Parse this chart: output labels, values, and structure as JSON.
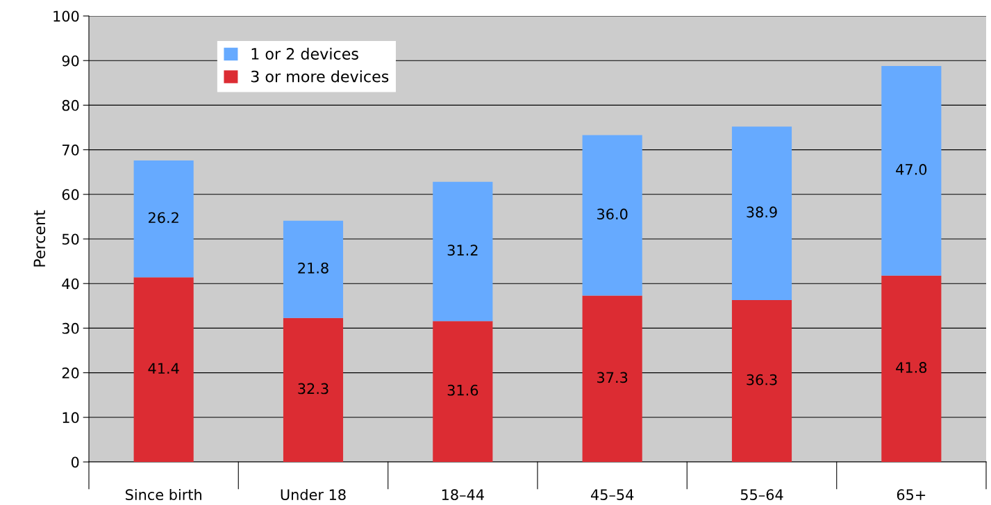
{
  "chart_data": {
    "type": "bar",
    "stacked": true,
    "ylabel": "Percent",
    "categories": [
      "Since birth",
      "Under 18",
      "18–44",
      "45–54",
      "55–64",
      "65+"
    ],
    "series": [
      {
        "name": "3 or more devices",
        "color": "#dc2c33",
        "values": [
          41.4,
          32.3,
          31.6,
          37.3,
          36.3,
          41.8
        ],
        "value_labels": [
          "41.4",
          "32.3",
          "31.6",
          "37.3",
          "36.3",
          "41.8"
        ]
      },
      {
        "name": "1 or 2 devices",
        "color": "#66aaff",
        "values": [
          26.2,
          21.8,
          31.2,
          36.0,
          38.9,
          47.0
        ],
        "value_labels": [
          "26.2",
          "21.8",
          "31.2",
          "36.0",
          "38.9",
          "47.0"
        ]
      }
    ],
    "ylim": [
      0,
      100
    ],
    "yticks": [
      0,
      10,
      20,
      30,
      40,
      50,
      60,
      70,
      80,
      90,
      100
    ],
    "grid": "y",
    "legend": "top left"
  }
}
